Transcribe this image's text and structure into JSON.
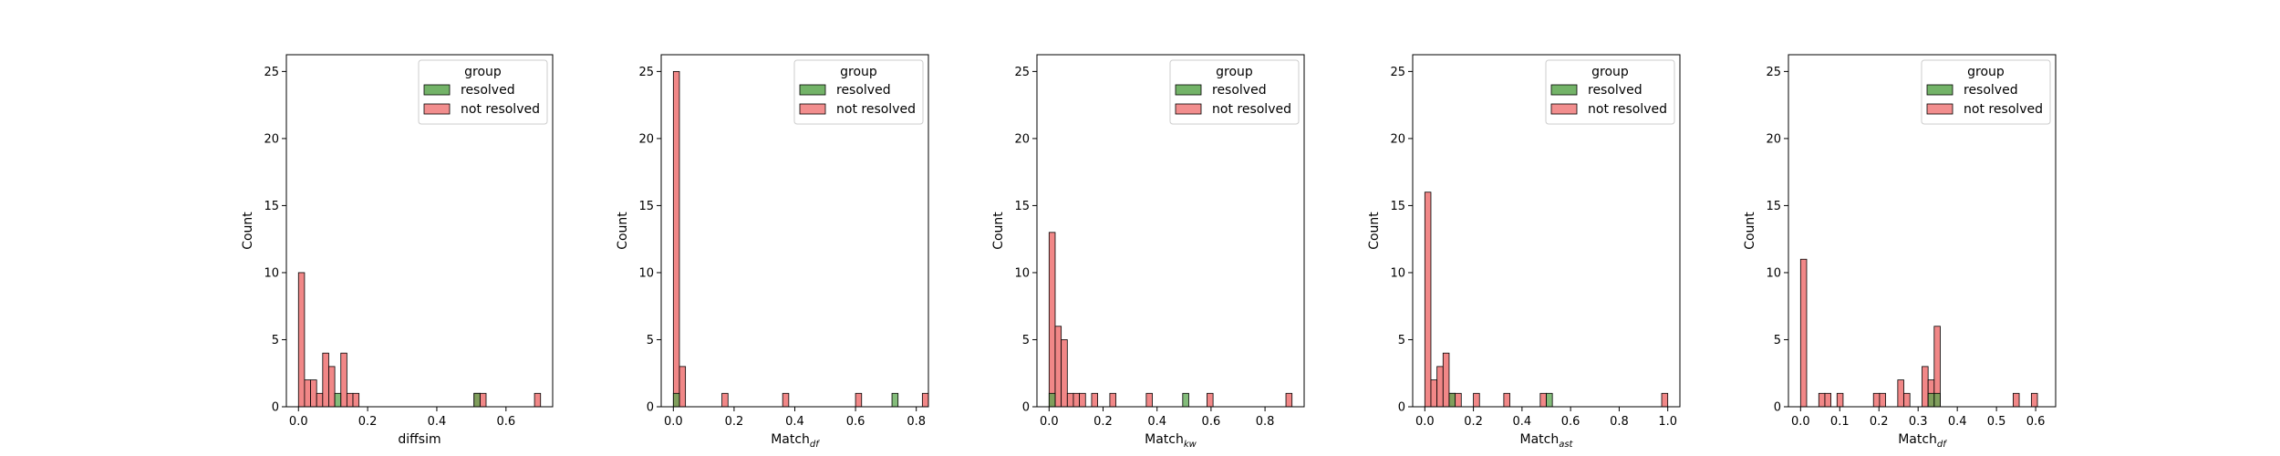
{
  "legend": {
    "title": "group",
    "entries": [
      {
        "label": "resolved",
        "color": "#5aa64e"
      },
      {
        "label": "not resolved",
        "color": "#f07a7a"
      }
    ]
  },
  "chart_data": [
    {
      "type": "bar",
      "ylabel": "Count",
      "xlabel_main": "diffsim",
      "xlabel_sub": "",
      "xlim": [
        -0.035,
        0.735
      ],
      "ylim": [
        0,
        26.25
      ],
      "xticks": [
        0.0,
        0.2,
        0.4,
        0.6
      ],
      "xtick_labels": [
        "0.0",
        "0.2",
        "0.4",
        "0.6"
      ],
      "yticks": [
        0,
        5,
        10,
        15,
        20,
        25
      ],
      "ytick_labels": [
        "0",
        "5",
        "10",
        "15",
        "20",
        "25"
      ],
      "bin_width": 0.0175,
      "legend_position": "top-right",
      "series": [
        {
          "group": "not resolved",
          "bins": [
            [
              0.0,
              10
            ],
            [
              0.0175,
              2
            ],
            [
              0.035,
              2
            ],
            [
              0.0525,
              1
            ],
            [
              0.07,
              4
            ],
            [
              0.0875,
              3
            ],
            [
              0.105,
              0
            ],
            [
              0.1225,
              4
            ],
            [
              0.14,
              1
            ],
            [
              0.1575,
              1
            ],
            [
              0.5075,
              1
            ],
            [
              0.525,
              1
            ],
            [
              0.6825,
              1
            ]
          ]
        },
        {
          "group": "resolved",
          "bins": [
            [
              0.105,
              1
            ],
            [
              0.5075,
              1
            ]
          ]
        }
      ]
    },
    {
      "type": "bar",
      "ylabel": "Count",
      "xlabel_main": "Match",
      "xlabel_sub": "df",
      "xlim": [
        -0.04,
        0.84
      ],
      "ylim": [
        0,
        26.25
      ],
      "xticks": [
        0.0,
        0.2,
        0.4,
        0.6,
        0.8
      ],
      "xtick_labels": [
        "0.0",
        "0.2",
        "0.4",
        "0.6",
        "0.8"
      ],
      "yticks": [
        0,
        5,
        10,
        15,
        20,
        25
      ],
      "ytick_labels": [
        "0",
        "5",
        "10",
        "15",
        "20",
        "25"
      ],
      "bin_width": 0.02,
      "legend_position": "top-right",
      "series": [
        {
          "group": "not resolved",
          "bins": [
            [
              0.0,
              25
            ],
            [
              0.02,
              3
            ],
            [
              0.16,
              1
            ],
            [
              0.36,
              1
            ],
            [
              0.6,
              1
            ],
            [
              0.82,
              1
            ]
          ]
        },
        {
          "group": "resolved",
          "bins": [
            [
              0.0,
              1
            ],
            [
              0.72,
              1
            ]
          ]
        }
      ]
    },
    {
      "type": "bar",
      "ylabel": "Count",
      "xlabel_main": "Match",
      "xlabel_sub": "kw",
      "xlim": [
        -0.045,
        0.945
      ],
      "ylim": [
        0,
        26.25
      ],
      "xticks": [
        0.0,
        0.2,
        0.4,
        0.6,
        0.8
      ],
      "xtick_labels": [
        "0.0",
        "0.2",
        "0.4",
        "0.6",
        "0.8"
      ],
      "yticks": [
        0,
        5,
        10,
        15,
        20,
        25
      ],
      "ytick_labels": [
        "0",
        "5",
        "10",
        "15",
        "20",
        "25"
      ],
      "bin_width": 0.0225,
      "legend_position": "top-right",
      "series": [
        {
          "group": "not resolved",
          "bins": [
            [
              0.0,
              13
            ],
            [
              0.0225,
              6
            ],
            [
              0.045,
              5
            ],
            [
              0.0675,
              1
            ],
            [
              0.09,
              1
            ],
            [
              0.1125,
              1
            ],
            [
              0.1575,
              1
            ],
            [
              0.225,
              1
            ],
            [
              0.36,
              1
            ],
            [
              0.585,
              1
            ],
            [
              0.8775,
              1
            ]
          ]
        },
        {
          "group": "resolved",
          "bins": [
            [
              0.0,
              1
            ],
            [
              0.495,
              1
            ]
          ]
        }
      ]
    },
    {
      "type": "bar",
      "ylabel": "Count",
      "xlabel_main": "Match",
      "xlabel_sub": "ast",
      "xlim": [
        -0.05,
        1.05
      ],
      "ylim": [
        0,
        26.25
      ],
      "xticks": [
        0.0,
        0.2,
        0.4,
        0.6,
        0.8,
        1.0
      ],
      "xtick_labels": [
        "0.0",
        "0.2",
        "0.4",
        "0.6",
        "0.8",
        "1.0"
      ],
      "yticks": [
        0,
        5,
        10,
        15,
        20,
        25
      ],
      "ytick_labels": [
        "0",
        "5",
        "10",
        "15",
        "20",
        "25"
      ],
      "bin_width": 0.025,
      "legend_position": "top-right",
      "series": [
        {
          "group": "not resolved",
          "bins": [
            [
              0.0,
              16
            ],
            [
              0.025,
              2
            ],
            [
              0.05,
              3
            ],
            [
              0.075,
              4
            ],
            [
              0.1,
              1
            ],
            [
              0.125,
              1
            ],
            [
              0.2,
              1
            ],
            [
              0.325,
              1
            ],
            [
              0.475,
              1
            ],
            [
              0.975,
              1
            ]
          ]
        },
        {
          "group": "resolved",
          "bins": [
            [
              0.1,
              1
            ],
            [
              0.5,
              1
            ]
          ]
        }
      ]
    },
    {
      "type": "bar",
      "ylabel": "Count",
      "xlabel_main": "Match",
      "xlabel_sub": "df",
      "xlim": [
        -0.031,
        0.651
      ],
      "ylim": [
        0,
        26.25
      ],
      "xticks": [
        0.0,
        0.1,
        0.2,
        0.3,
        0.4,
        0.5,
        0.6
      ],
      "xtick_labels": [
        "0.0",
        "0.1",
        "0.2",
        "0.3",
        "0.4",
        "0.5",
        "0.6"
      ],
      "yticks": [
        0,
        5,
        10,
        15,
        20,
        25
      ],
      "ytick_labels": [
        "0",
        "5",
        "10",
        "15",
        "20",
        "25"
      ],
      "bin_width": 0.0155,
      "legend_position": "top-right",
      "series": [
        {
          "group": "not resolved",
          "bins": [
            [
              0.0,
              11
            ],
            [
              0.0465,
              1
            ],
            [
              0.062,
              1
            ],
            [
              0.093,
              1
            ],
            [
              0.186,
              1
            ],
            [
              0.2015,
              1
            ],
            [
              0.248,
              2
            ],
            [
              0.2635,
              1
            ],
            [
              0.31,
              3
            ],
            [
              0.3255,
              2
            ],
            [
              0.341,
              6
            ],
            [
              0.5425,
              1
            ],
            [
              0.589,
              1
            ]
          ]
        },
        {
          "group": "resolved",
          "bins": [
            [
              0.3255,
              1
            ],
            [
              0.341,
              1
            ]
          ]
        }
      ]
    }
  ]
}
